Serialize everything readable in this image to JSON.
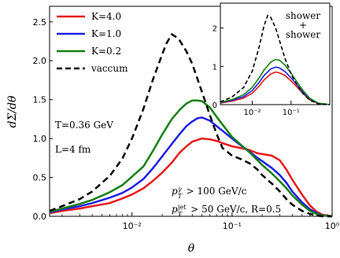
{
  "chart_data": [
    {
      "type": "line",
      "xlabel": "θ",
      "ylabel": "dΣ/dθ",
      "x_scale": "log",
      "xlim": [
        0.0015,
        1.0
      ],
      "ylim": [
        0,
        2.7
      ],
      "grid": false,
      "legend_position": "upper-left",
      "x_tick_labels": [
        "10⁻²",
        "10⁻¹",
        "10⁰"
      ],
      "y_tick_labels": [
        "0.0",
        "0.5",
        "1.0",
        "1.5",
        "2.0",
        "2.5"
      ],
      "annotations": [
        "T=0.36 GeV",
        "L=4 fm",
        "p_T^γ > 100 GeV/c",
        "p_T^jet > 50 GeV/c,  R=0.5"
      ],
      "series": [
        {
          "name": "K=4.0",
          "color": "#e8191b",
          "dash": "solid",
          "x": [
            0.0015,
            0.002,
            0.003,
            0.004,
            0.006,
            0.008,
            0.01,
            0.013,
            0.016,
            0.02,
            0.025,
            0.03,
            0.035,
            0.04,
            0.05,
            0.06,
            0.07,
            0.08,
            0.1,
            0.12,
            0.15,
            0.18,
            0.2,
            0.25,
            0.3,
            0.35,
            0.4,
            0.5,
            0.6,
            0.7,
            0.8,
            1.0
          ],
          "values": [
            0.04,
            0.07,
            0.1,
            0.13,
            0.17,
            0.23,
            0.28,
            0.36,
            0.45,
            0.56,
            0.69,
            0.82,
            0.9,
            0.96,
            1.0,
            0.99,
            0.97,
            0.94,
            0.9,
            0.88,
            0.85,
            0.81,
            0.8,
            0.78,
            0.72,
            0.6,
            0.47,
            0.28,
            0.14,
            0.06,
            0.02,
            0.0
          ]
        },
        {
          "name": "K=1.0",
          "color": "#1f1fe8",
          "dash": "solid",
          "x": [
            0.0015,
            0.002,
            0.003,
            0.004,
            0.006,
            0.008,
            0.01,
            0.013,
            0.016,
            0.02,
            0.025,
            0.03,
            0.035,
            0.04,
            0.045,
            0.05,
            0.06,
            0.07,
            0.08,
            0.1,
            0.12,
            0.15,
            0.18,
            0.2,
            0.25,
            0.3,
            0.35,
            0.4,
            0.5,
            0.6,
            0.7,
            0.8,
            1.0
          ],
          "values": [
            0.05,
            0.09,
            0.13,
            0.17,
            0.24,
            0.3,
            0.37,
            0.48,
            0.61,
            0.77,
            0.93,
            1.06,
            1.16,
            1.22,
            1.26,
            1.27,
            1.23,
            1.16,
            1.1,
            1.0,
            0.92,
            0.83,
            0.75,
            0.71,
            0.62,
            0.53,
            0.43,
            0.32,
            0.18,
            0.09,
            0.04,
            0.01,
            0.0
          ]
        },
        {
          "name": "K=0.2",
          "color": "#138013",
          "dash": "solid",
          "x": [
            0.0015,
            0.002,
            0.003,
            0.004,
            0.006,
            0.008,
            0.01,
            0.013,
            0.016,
            0.02,
            0.025,
            0.03,
            0.035,
            0.04,
            0.045,
            0.05,
            0.06,
            0.07,
            0.08,
            0.1,
            0.12,
            0.15,
            0.18,
            0.2,
            0.25,
            0.3,
            0.35,
            0.4,
            0.5,
            0.6,
            0.7,
            0.8,
            1.0
          ],
          "values": [
            0.06,
            0.1,
            0.16,
            0.21,
            0.31,
            0.4,
            0.51,
            0.64,
            0.83,
            1.05,
            1.25,
            1.37,
            1.45,
            1.49,
            1.49,
            1.48,
            1.4,
            1.28,
            1.18,
            1.02,
            0.93,
            0.82,
            0.72,
            0.66,
            0.55,
            0.45,
            0.36,
            0.27,
            0.15,
            0.07,
            0.03,
            0.01,
            0.0
          ]
        },
        {
          "name": "vaccum",
          "color": "#000000",
          "dash": "dashed",
          "x": [
            0.0015,
            0.002,
            0.003,
            0.004,
            0.006,
            0.008,
            0.01,
            0.013,
            0.016,
            0.02,
            0.022,
            0.025,
            0.028,
            0.03,
            0.035,
            0.04,
            0.05,
            0.06,
            0.07,
            0.08,
            0.1,
            0.12,
            0.15,
            0.18,
            0.2,
            0.25,
            0.3,
            0.35,
            0.4,
            0.5,
            0.6,
            0.7,
            0.8,
            1.0
          ],
          "values": [
            0.07,
            0.13,
            0.22,
            0.32,
            0.52,
            0.74,
            1.0,
            1.38,
            1.74,
            2.08,
            2.22,
            2.34,
            2.3,
            2.26,
            2.12,
            1.96,
            1.6,
            1.3,
            1.06,
            0.88,
            0.78,
            0.74,
            0.68,
            0.6,
            0.53,
            0.42,
            0.32,
            0.22,
            0.15,
            0.07,
            0.03,
            0.01,
            0.0,
            0.0
          ]
        }
      ]
    },
    {
      "type": "line",
      "inset": true,
      "title_lines": [
        "shower",
        "+",
        "shower"
      ],
      "x_scale": "log",
      "xlim": [
        0.0015,
        1.0
      ],
      "ylim": [
        0,
        2.65
      ],
      "x_tick_labels": [
        "10⁻²",
        "10⁻¹"
      ],
      "y_tick_labels": [
        "0",
        "1",
        "2"
      ],
      "series": [
        {
          "name": "K=4.0",
          "color": "#e8191b",
          "dash": "solid",
          "x": [
            0.0015,
            0.003,
            0.006,
            0.01,
            0.015,
            0.02,
            0.03,
            0.04,
            0.05,
            0.07,
            0.1,
            0.15,
            0.2,
            0.3,
            0.5,
            1.0
          ],
          "values": [
            0.04,
            0.09,
            0.17,
            0.3,
            0.48,
            0.64,
            0.8,
            0.85,
            0.83,
            0.76,
            0.62,
            0.44,
            0.3,
            0.13,
            0.03,
            0.0
          ]
        },
        {
          "name": "K=1.0",
          "color": "#1f1fe8",
          "dash": "solid",
          "x": [
            0.0015,
            0.003,
            0.006,
            0.01,
            0.015,
            0.02,
            0.03,
            0.04,
            0.05,
            0.07,
            0.1,
            0.15,
            0.2,
            0.3,
            0.5,
            1.0
          ],
          "values": [
            0.05,
            0.11,
            0.21,
            0.37,
            0.58,
            0.76,
            0.93,
            0.98,
            0.96,
            0.86,
            0.7,
            0.49,
            0.33,
            0.15,
            0.03,
            0.0
          ]
        },
        {
          "name": "K=0.2",
          "color": "#138013",
          "dash": "solid",
          "x": [
            0.0015,
            0.003,
            0.006,
            0.01,
            0.015,
            0.02,
            0.03,
            0.04,
            0.05,
            0.07,
            0.1,
            0.15,
            0.2,
            0.3,
            0.5,
            1.0
          ],
          "values": [
            0.06,
            0.13,
            0.26,
            0.45,
            0.7,
            0.9,
            1.11,
            1.18,
            1.16,
            1.03,
            0.82,
            0.56,
            0.38,
            0.17,
            0.04,
            0.0
          ]
        },
        {
          "name": "vaccum",
          "color": "#000000",
          "dash": "dashed",
          "x": [
            0.0015,
            0.003,
            0.006,
            0.01,
            0.015,
            0.02,
            0.025,
            0.03,
            0.04,
            0.05,
            0.07,
            0.1,
            0.15,
            0.2,
            0.3,
            0.5,
            1.0
          ],
          "values": [
            0.07,
            0.2,
            0.45,
            0.88,
            1.5,
            2.05,
            2.33,
            2.28,
            2.0,
            1.68,
            1.2,
            0.8,
            0.48,
            0.3,
            0.12,
            0.02,
            0.0
          ]
        }
      ]
    }
  ]
}
